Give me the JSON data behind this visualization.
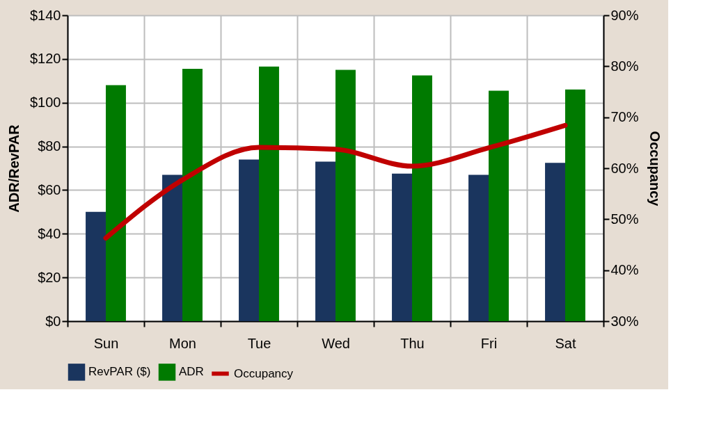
{
  "chart_data": {
    "type": "bar",
    "categories": [
      "Sun",
      "Mon",
      "Tue",
      "Wed",
      "Thu",
      "Fri",
      "Sat"
    ],
    "ylabel": "ADR/RevPAR",
    "y2label": "Occupancy",
    "series": [
      {
        "name": "RevPAR ($)",
        "color": "#1a355e",
        "values": [
          50,
          67,
          74,
          73,
          67.5,
          67,
          72.5
        ]
      },
      {
        "name": "ADR",
        "color": "#007a00",
        "values": [
          108,
          115.5,
          116.5,
          115,
          112.5,
          105.5,
          106
        ]
      },
      {
        "name": "Occupancy",
        "type": "line",
        "axis": "y2",
        "color": "#c00000",
        "values": [
          46.3,
          57.7,
          64.1,
          63.7,
          60.4,
          64,
          68.4
        ]
      }
    ],
    "ylim": [
      0,
      140
    ],
    "yticks": [
      {
        "value": 0,
        "label": "$0"
      },
      {
        "value": 20,
        "label": "$20"
      },
      {
        "value": 40,
        "label": "$40"
      },
      {
        "value": 60,
        "label": "$60"
      },
      {
        "value": 80,
        "label": "$80"
      },
      {
        "value": 100,
        "label": "$100"
      },
      {
        "value": 120,
        "label": "$120"
      },
      {
        "value": 140,
        "label": "$140"
      }
    ],
    "y2lim": [
      30,
      90
    ],
    "y2ticks": [
      {
        "value": 30,
        "label": "30%"
      },
      {
        "value": 40,
        "label": "40%"
      },
      {
        "value": 50,
        "label": "50%"
      },
      {
        "value": 60,
        "label": "60%"
      },
      {
        "value": 70,
        "label": "70%"
      },
      {
        "value": 80,
        "label": "80%"
      },
      {
        "value": 90,
        "label": "90%"
      }
    ],
    "grid": true,
    "legend": "bottom",
    "marker": "none",
    "line_style": "solid"
  }
}
